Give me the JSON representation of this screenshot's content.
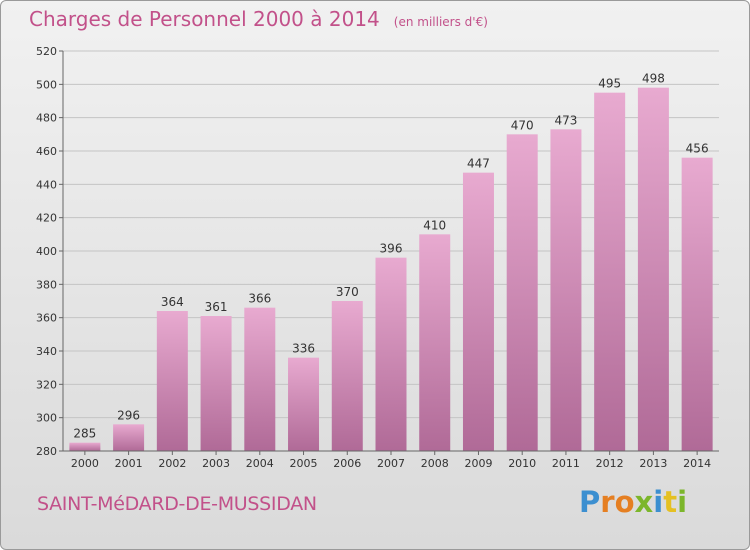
{
  "chart_data": {
    "type": "bar",
    "title": "Charges de Personnel 2000 à 2014",
    "subtitle": "(en milliers d'€)",
    "categories": [
      "2000",
      "2001",
      "2002",
      "2003",
      "2004",
      "2005",
      "2006",
      "2007",
      "2008",
      "2009",
      "2010",
      "2011",
      "2012",
      "2013",
      "2014"
    ],
    "values": [
      285,
      296,
      364,
      361,
      366,
      336,
      370,
      396,
      410,
      447,
      470,
      473,
      495,
      498,
      456
    ],
    "ylim": [
      280,
      520
    ],
    "yticks": [
      280,
      300,
      320,
      340,
      360,
      380,
      400,
      420,
      440,
      460,
      480,
      500,
      520
    ],
    "grid": true,
    "bar_color_top": "#e8aad0",
    "bar_color_bottom": "#b06a97"
  },
  "footer": {
    "commune": "SAINT-MéDARD-DE-MUSSIDAN"
  },
  "brand": {
    "letters": [
      {
        "ch": "P",
        "color": "#3c8fd0"
      },
      {
        "ch": "r",
        "color": "#e57f22"
      },
      {
        "ch": "o",
        "color": "#e57f22"
      },
      {
        "ch": "x",
        "color": "#7cb62b"
      },
      {
        "ch": "i",
        "color": "#3c8fd0"
      },
      {
        "ch": "t",
        "color": "#e5c022"
      },
      {
        "ch": "i",
        "color": "#7cb62b"
      }
    ]
  }
}
